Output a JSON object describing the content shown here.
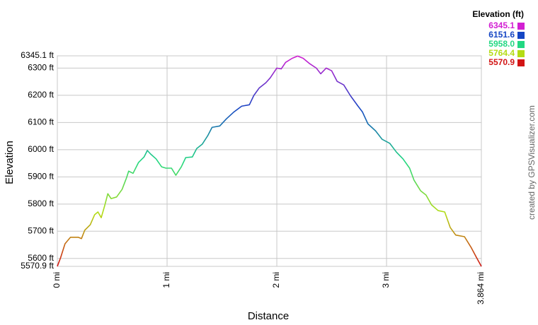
{
  "chart_data": {
    "type": "line",
    "y_label": "Elevation",
    "x_label": "Distance",
    "legend_title": "Elevation (ft)",
    "credit": "created by GPSVisualizer.com",
    "color_scale": [
      {
        "value": 6345.1,
        "label": "6345.1",
        "color": "#d21fd2"
      },
      {
        "value": 6151.6,
        "label": "6151.6",
        "color": "#1646c4"
      },
      {
        "value": 5958.0,
        "label": "5958.0",
        "color": "#22d882"
      },
      {
        "value": 5764.4,
        "label": "5764.4",
        "color": "#b4dc14"
      },
      {
        "value": 5570.9,
        "label": "5570.9",
        "color": "#d21414"
      }
    ],
    "x": [
      0,
      0.03,
      0.07,
      0.12,
      0.19,
      0.22,
      0.25,
      0.3,
      0.34,
      0.37,
      0.4,
      0.43,
      0.46,
      0.49,
      0.54,
      0.59,
      0.63,
      0.65,
      0.69,
      0.74,
      0.79,
      0.82,
      0.85,
      0.9,
      0.95,
      0.99,
      1.04,
      1.08,
      1.13,
      1.17,
      1.23,
      1.27,
      1.32,
      1.37,
      1.41,
      1.48,
      1.54,
      1.61,
      1.68,
      1.75,
      1.79,
      1.84,
      1.9,
      1.94,
      2.0,
      2.04,
      2.08,
      2.14,
      2.19,
      2.24,
      2.3,
      2.36,
      2.4,
      2.45,
      2.5,
      2.55,
      2.61,
      2.67,
      2.74,
      2.78,
      2.83,
      2.9,
      2.96,
      3.03,
      3.09,
      3.15,
      3.21,
      3.25,
      3.31,
      3.36,
      3.41,
      3.47,
      3.53,
      3.58,
      3.63,
      3.71,
      3.77,
      3.82,
      3.864
    ],
    "values": [
      5571,
      5603,
      5654,
      5678,
      5678,
      5673,
      5704,
      5724,
      5761,
      5771,
      5750,
      5792,
      5838,
      5820,
      5826,
      5854,
      5896,
      5921,
      5913,
      5953,
      5973,
      5997,
      5984,
      5966,
      5937,
      5932,
      5932,
      5906,
      5937,
      5971,
      5973,
      6004,
      6020,
      6051,
      6082,
      6087,
      6113,
      6139,
      6160,
      6165,
      6199,
      6227,
      6246,
      6264,
      6300,
      6297,
      6321,
      6336,
      6344,
      6336,
      6316,
      6300,
      6279,
      6300,
      6290,
      6251,
      6238,
      6199,
      6160,
      6139,
      6095,
      6069,
      6038,
      6023,
      5991,
      5966,
      5932,
      5888,
      5849,
      5833,
      5797,
      5776,
      5771,
      5714,
      5686,
      5680,
      5641,
      5603,
      5571
    ],
    "xlim": [
      0,
      3.864
    ],
    "xticks": [
      {
        "value": 0,
        "label": "0 mi"
      },
      {
        "value": 1,
        "label": "1 mi"
      },
      {
        "value": 2,
        "label": "2 mi"
      },
      {
        "value": 3,
        "label": "3 mi"
      },
      {
        "value": 3.864,
        "label": "3.864 mi"
      }
    ],
    "ylim": [
      5570.9,
      6345.1
    ],
    "yticks": [
      {
        "value": 5570.9,
        "label": "5570.9 ft"
      },
      {
        "value": 5600,
        "label": "5600 ft"
      },
      {
        "value": 5700,
        "label": "5700 ft"
      },
      {
        "value": 5800,
        "label": "5800 ft"
      },
      {
        "value": 5900,
        "label": "5900 ft"
      },
      {
        "value": 6000,
        "label": "6000 ft"
      },
      {
        "value": 6100,
        "label": "6100 ft"
      },
      {
        "value": 6200,
        "label": "6200 ft"
      },
      {
        "value": 6300,
        "label": "6300 ft"
      },
      {
        "value": 6345.1,
        "label": "6345.1 ft"
      }
    ],
    "grid": true
  }
}
